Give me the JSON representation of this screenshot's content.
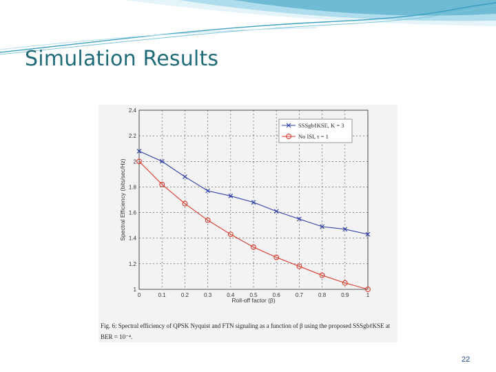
{
  "slide": {
    "title": "Simulation Results",
    "page_number": "22"
  },
  "theme": {
    "title_color": "#1f6b78",
    "wave_colors": [
      "#3a9fc0",
      "#7cc4dc",
      "#b8e0ee"
    ],
    "series_colors": [
      "#2b3ea8",
      "#d93a2b"
    ]
  },
  "figure": {
    "caption": "Fig. 6: Spectral efficiency of QPSK Nyquist and FTN signaling as a function of β using the proposed SSSgbℓKSE at BER = 10⁻⁴."
  },
  "chart_data": {
    "type": "line",
    "x": [
      0,
      0.1,
      0.2,
      0.3,
      0.4,
      0.5,
      0.6,
      0.7,
      0.8,
      0.9,
      1
    ],
    "series": [
      {
        "name": "SSSgbℓKSE, K = 3",
        "marker": "x",
        "color": "#2b3ea8",
        "values": [
          2.08,
          2.0,
          1.88,
          1.77,
          1.73,
          1.68,
          1.61,
          1.55,
          1.49,
          1.47,
          1.43
        ]
      },
      {
        "name": "No ISI, τ = 1",
        "marker": "o",
        "color": "#d93a2b",
        "values": [
          2.0,
          1.82,
          1.67,
          1.54,
          1.43,
          1.33,
          1.25,
          1.18,
          1.11,
          1.05,
          1.0
        ]
      }
    ],
    "xlabel": "Roll-off factor (β)",
    "ylabel": "Spectral Efficiency (bits/sec/Hz)",
    "xlim": [
      0,
      1
    ],
    "ylim": [
      1,
      2.4
    ],
    "xticks": [
      "0",
      "0.1",
      "0.2",
      "0.3",
      "0.4",
      "0.5",
      "0.6",
      "0.7",
      "0.8",
      "0.9",
      "1"
    ],
    "yticks": [
      "1",
      "1.2",
      "1.4",
      "1.6",
      "1.8",
      "2",
      "2.2",
      "2.4"
    ],
    "grid": true,
    "legend_position": "top-right"
  }
}
